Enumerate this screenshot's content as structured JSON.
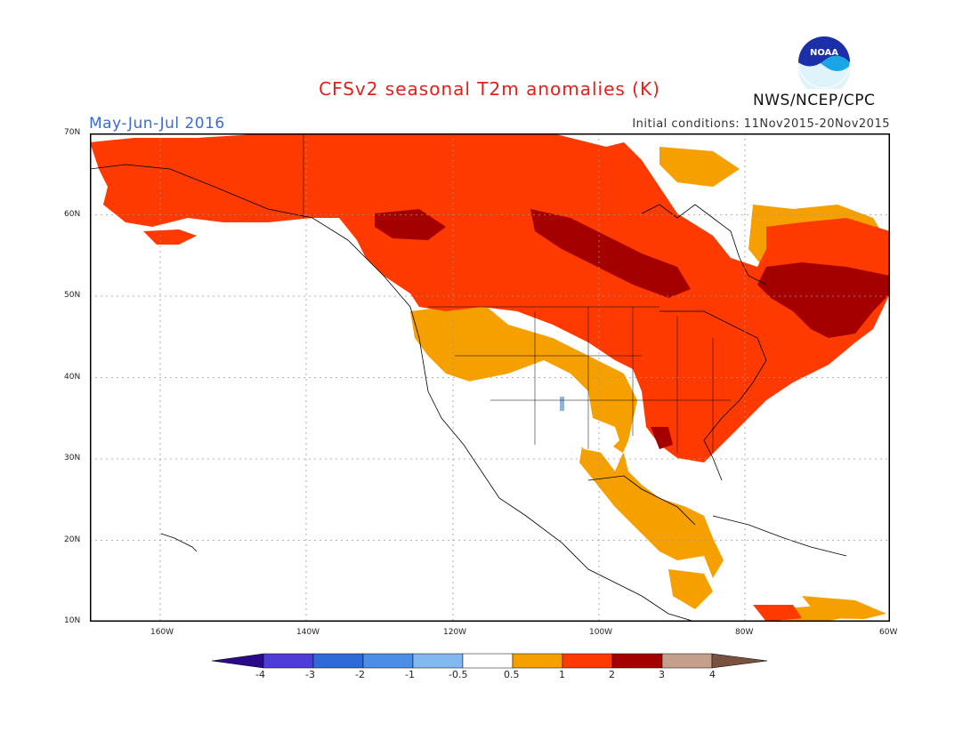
{
  "title": "CFSv2 seasonal T2m anomalies (K)",
  "period": "May-Jun-Jul 2016",
  "initial_conditions": "Initial conditions: 11Nov2015-20Nov2015",
  "agency": "NWS/NCEP/CPC",
  "logo_text": "NOAA",
  "map": {
    "lat_labels": [
      "70N",
      "60N",
      "50N",
      "40N",
      "30N",
      "20N",
      "10N"
    ],
    "lon_labels": [
      "160W",
      "140W",
      "120W",
      "100W",
      "80W",
      "60W"
    ],
    "region": "North America"
  },
  "colorbar": {
    "ticks": [
      "-4",
      "-3",
      "-2",
      "-1",
      "-0.5",
      "0.5",
      "1",
      "2",
      "3",
      "4"
    ],
    "colors": [
      "#2a0a8a",
      "#4d3dd6",
      "#2f6bd6",
      "#4a8ee8",
      "#82b8f0",
      "#ffffff",
      "#f6a000",
      "#ff3a00",
      "#a50000",
      "#c4a08c",
      "#7a5040"
    ]
  },
  "anomaly_colors": {
    "lt_0_5": "#ffffff",
    "c0_5_1": "#f6a000",
    "c1_2": "#ff3a00",
    "c2_3": "#a50000",
    "negative_small": "#82b8f0"
  }
}
